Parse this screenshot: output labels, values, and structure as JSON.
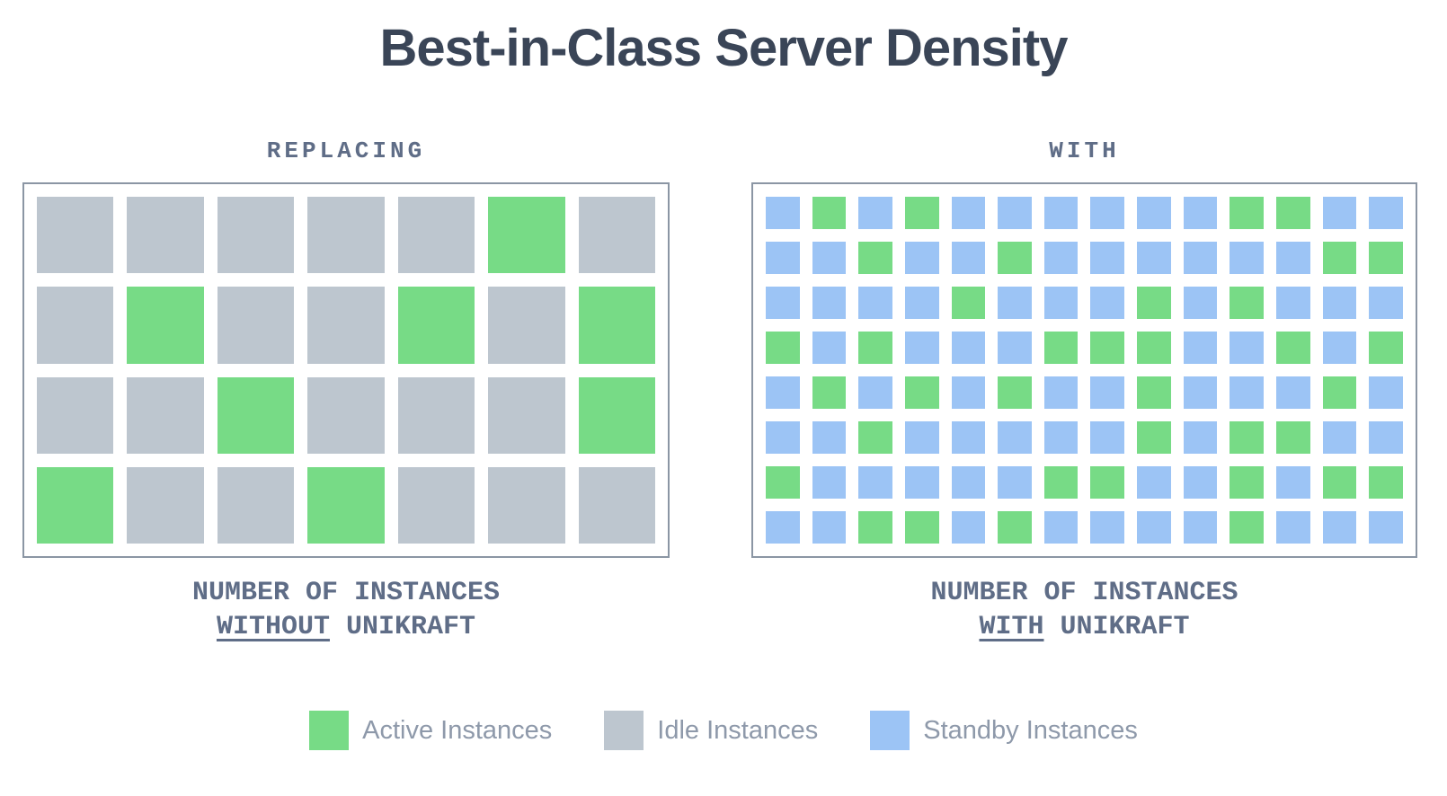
{
  "title": "Best-in-Class Server Density",
  "colors": {
    "active": "#77DB86",
    "idle": "#BDC6CF",
    "standby": "#9CC4F5",
    "box_border": "#8B96A4",
    "title_text": "#3A4557",
    "label_text": "#5F6D87",
    "legend_text": "#8E99AA"
  },
  "panels": [
    {
      "id": "without-unikraft",
      "label": "REPLACING",
      "caption_line1": "NUMBER OF INSTANCES",
      "caption_keyword": "WITHOUT",
      "caption_suffix": "UNIKRAFT",
      "columns": 7,
      "rows": 4,
      "cell_legend": {
        "A": "active",
        "I": "idle",
        "S": "standby"
      },
      "cells": [
        "IIIIIAI",
        "IAIIAIA",
        "IIAIIIA",
        "AIIAIII"
      ]
    },
    {
      "id": "with-unikraft",
      "label": "WITH",
      "caption_line1": "NUMBER OF INSTANCES",
      "caption_keyword": "WITH",
      "caption_suffix": "UNIKRAFT",
      "columns": 14,
      "rows": 8,
      "cell_legend": {
        "A": "active",
        "I": "idle",
        "S": "standby"
      },
      "cells": [
        "SASASSSSSSAASS",
        "SSASSASSSSSSAA",
        "SSSSASSSASASSS",
        "ASASSSAAASSASA",
        "SASASASSASSSAS",
        "SSASSSSSASAASS",
        "ASSSSSAASSASAA",
        "SSAASASSSSASSS"
      ]
    }
  ],
  "legend": [
    {
      "type": "active",
      "label": "Active Instances"
    },
    {
      "type": "idle",
      "label": "Idle Instances"
    },
    {
      "type": "standby",
      "label": "Standby Instances"
    }
  ]
}
